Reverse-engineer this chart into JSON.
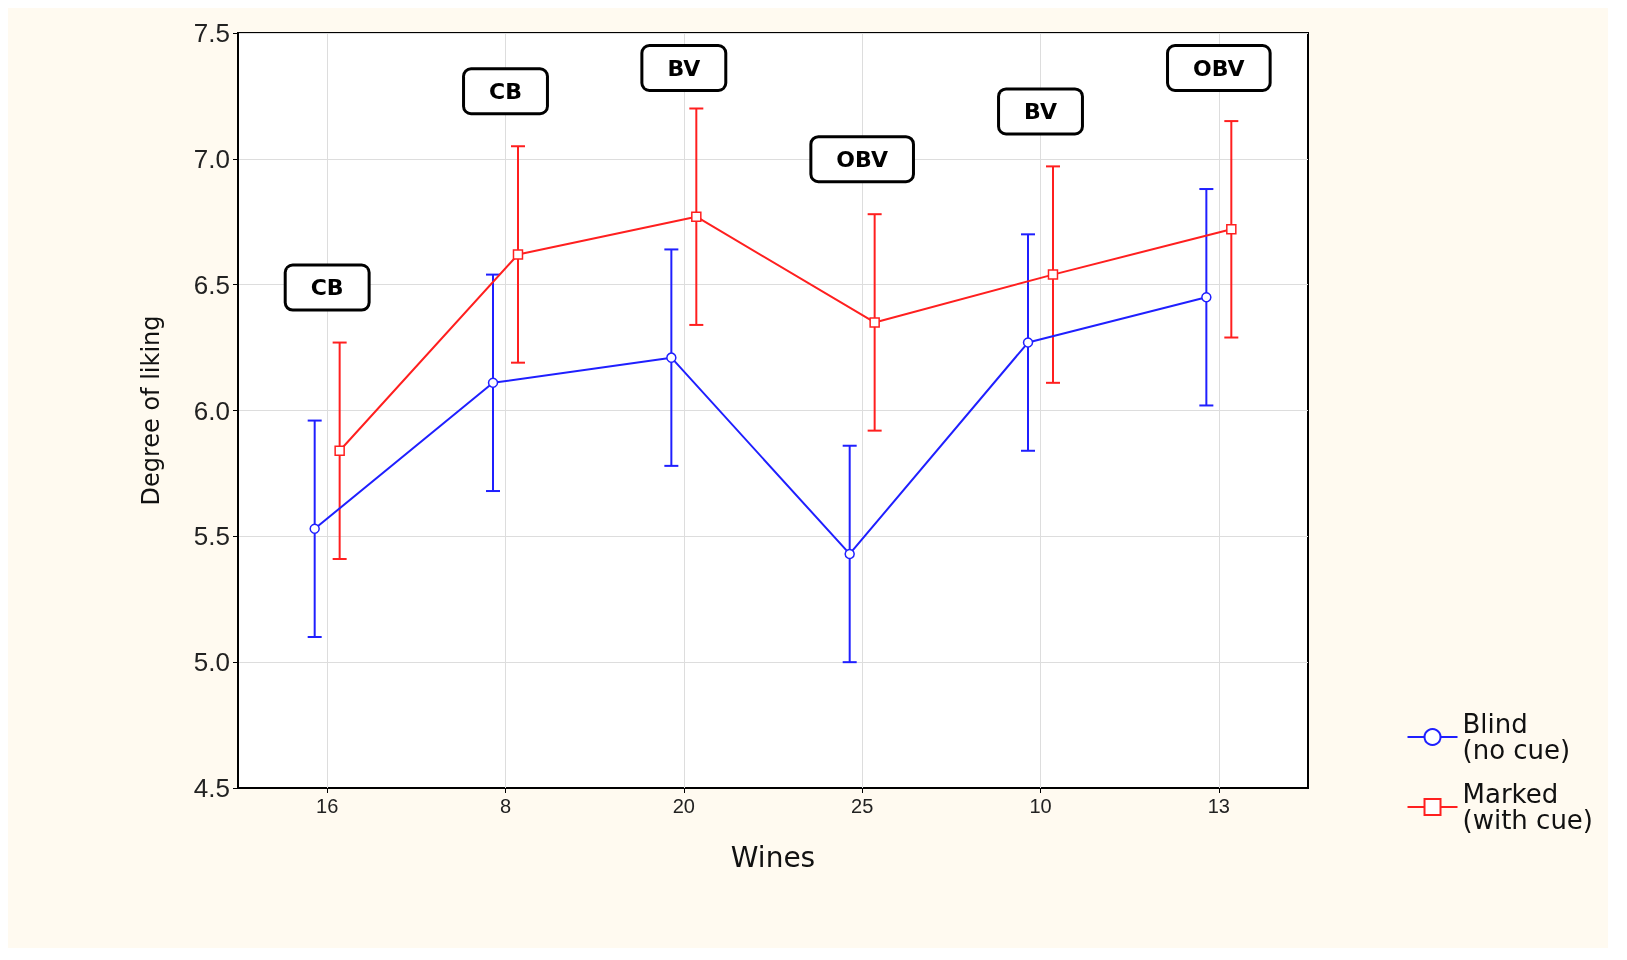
{
  "chart_data": {
    "type": "line",
    "xlabel": "Wines",
    "ylabel": "Degree of liking",
    "categories": [
      "16",
      "8",
      "20",
      "25",
      "10",
      "13"
    ],
    "series": [
      {
        "name": "Blind\n(no cue)",
        "color": "#1f1fff",
        "marker": "circle",
        "values": [
          5.53,
          6.11,
          6.21,
          5.43,
          6.27,
          6.45
        ],
        "errors": [
          0.43,
          0.43,
          0.43,
          0.43,
          0.43,
          0.43
        ]
      },
      {
        "name": "Marked\n(with cue)",
        "color": "#ff1f1f",
        "marker": "square",
        "values": [
          5.84,
          6.62,
          6.77,
          6.35,
          6.54,
          6.72
        ],
        "errors": [
          0.43,
          0.43,
          0.43,
          0.43,
          0.43,
          0.43
        ]
      }
    ],
    "ylim": [
      4.5,
      7.5
    ],
    "yticks": [
      {
        "value": 4.5,
        "label": "4.5"
      },
      {
        "value": 5,
        "label": "5.0"
      },
      {
        "value": 5.5,
        "label": "5.5"
      },
      {
        "value": 6,
        "label": "6.0"
      },
      {
        "value": 6.5,
        "label": "6.5"
      },
      {
        "value": 7,
        "label": "7.0"
      },
      {
        "value": 7.5,
        "label": "7.5"
      }
    ],
    "grid": true,
    "legend": "bottom right",
    "annotations": [
      "CB",
      "CB",
      "BV",
      "OBV",
      "BV",
      "OBV"
    ]
  }
}
